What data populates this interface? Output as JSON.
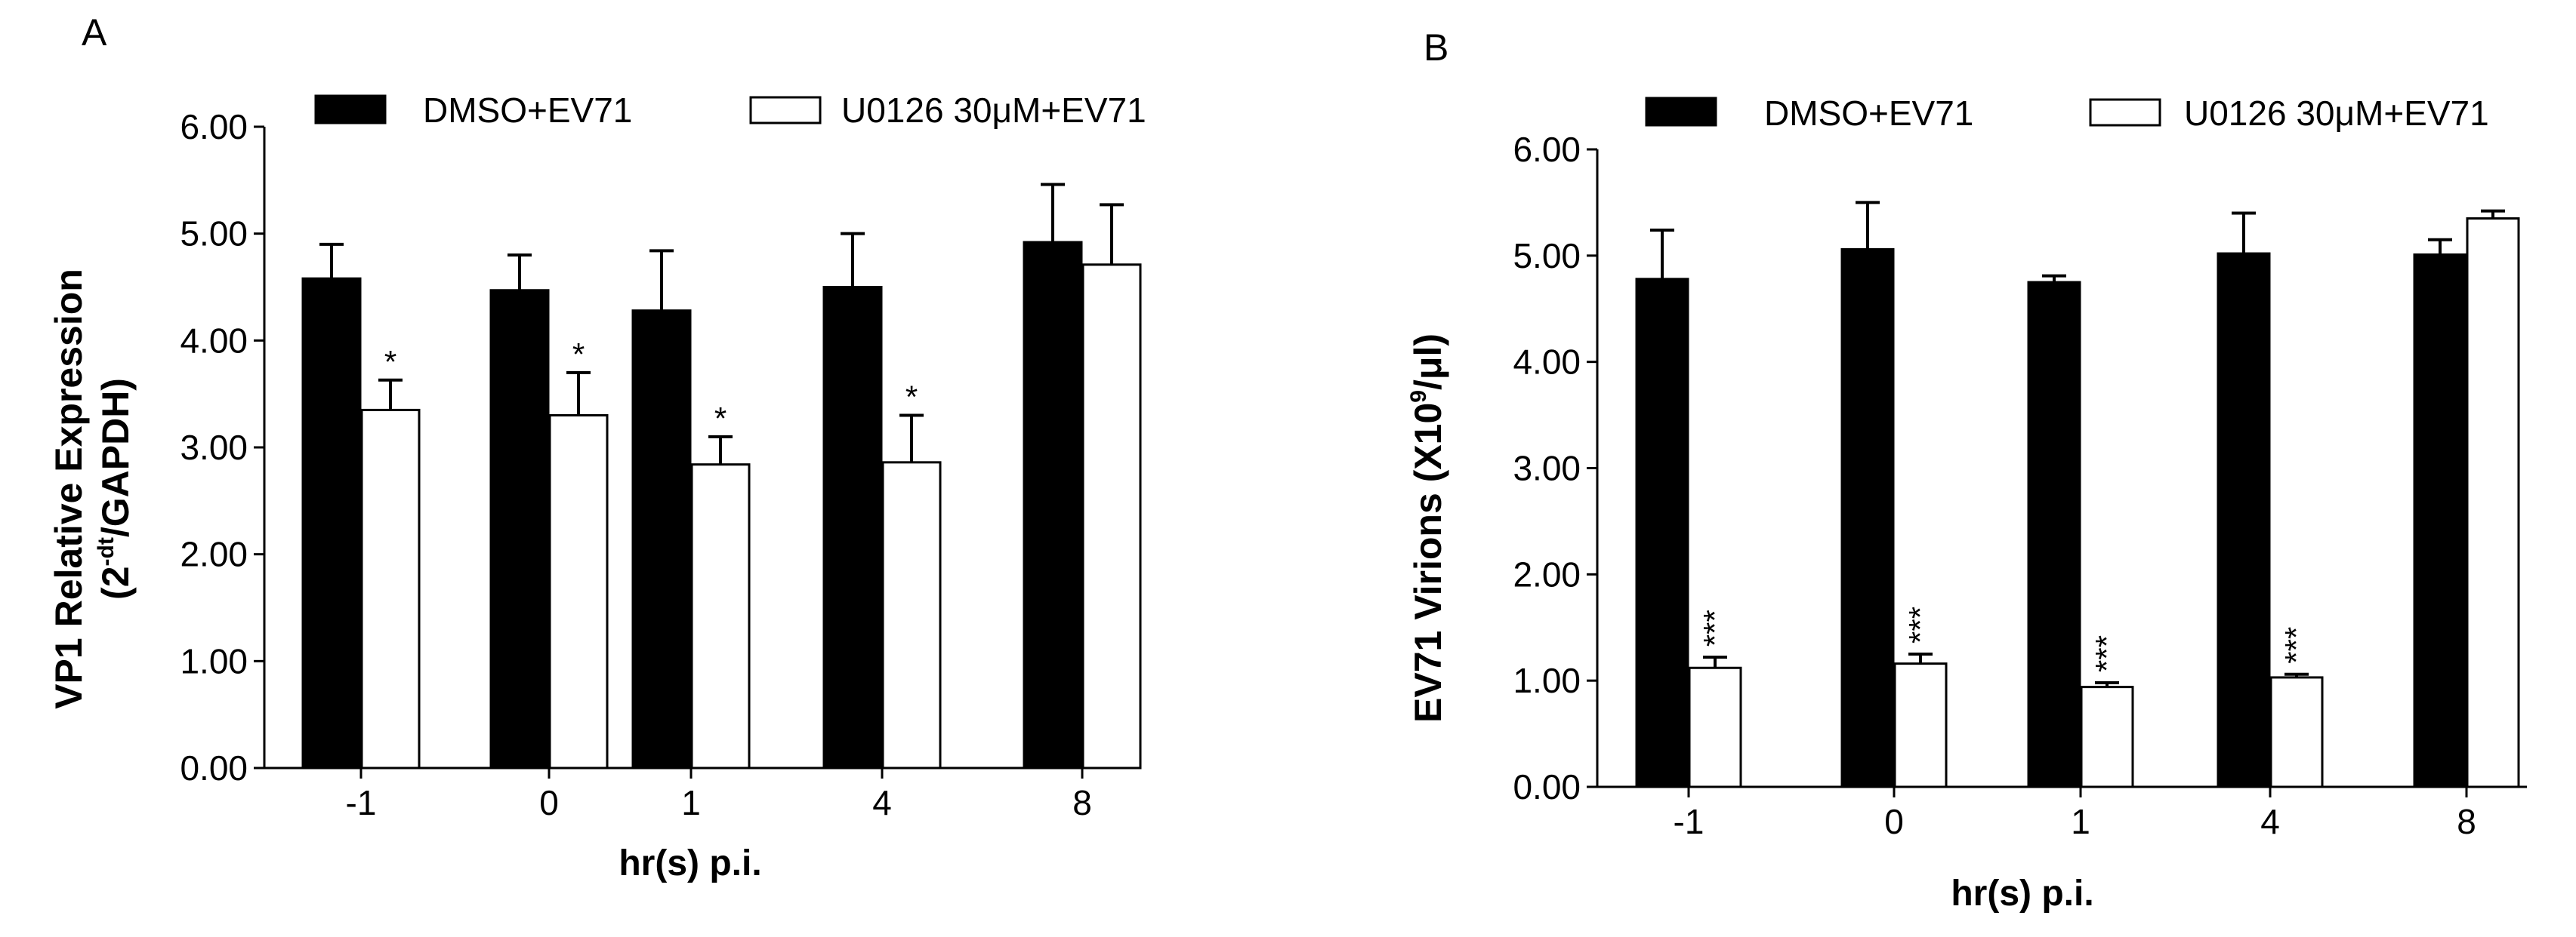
{
  "legend": {
    "series_a_label": "DMSO+EV71",
    "series_b_label": "U0126 30μM+EV71"
  },
  "colors": {
    "series_a_fill": "#000000",
    "series_b_fill": "#ffffff",
    "axis": "#000000"
  },
  "chart_data": [
    {
      "panel_label": "A",
      "type": "bar",
      "categories": [
        "-1",
        "0",
        "1",
        "4",
        "8"
      ],
      "series": [
        {
          "name": "DMSO+EV71",
          "values": [
            4.58,
            4.47,
            4.28,
            4.5,
            4.92
          ],
          "errors": [
            0.32,
            0.33,
            0.56,
            0.5,
            0.54
          ]
        },
        {
          "name": "U0126 30μM+EV71",
          "values": [
            3.35,
            3.3,
            2.84,
            2.86,
            4.71
          ],
          "errors": [
            0.28,
            0.4,
            0.26,
            0.44,
            0.56
          ]
        }
      ],
      "significance": [
        "*",
        "*",
        "*",
        "*",
        ""
      ],
      "ylim": [
        0,
        6
      ],
      "yticks": [
        "0.00",
        "1.00",
        "2.00",
        "3.00",
        "4.00",
        "5.00",
        "6.00"
      ],
      "xlabel": "hr(s) p.i.",
      "ylabel_line1": "VP1 Relative Expression",
      "ylabel_line2_prefix": "(2",
      "ylabel_line2_sup": "-dt",
      "ylabel_line2_suffix": "/GAPDH)"
    },
    {
      "panel_label": "B",
      "type": "bar",
      "categories": [
        "-1",
        "0",
        "1",
        "4",
        "8"
      ],
      "series": [
        {
          "name": "DMSO+EV71",
          "values": [
            4.78,
            5.06,
            4.75,
            5.02,
            5.01
          ],
          "errors": [
            0.46,
            0.44,
            0.06,
            0.38,
            0.14
          ]
        },
        {
          "name": "U0126 30μM+EV71",
          "values": [
            1.12,
            1.16,
            0.94,
            1.03,
            5.35
          ],
          "errors": [
            0.1,
            0.09,
            0.04,
            0.03,
            0.07
          ]
        }
      ],
      "significance": [
        "***",
        "***",
        "***",
        "***",
        ""
      ],
      "ylim": [
        0,
        6
      ],
      "yticks": [
        "0.00",
        "1.00",
        "2.00",
        "3.00",
        "4.00",
        "5.00",
        "6.00"
      ],
      "xlabel": "hr(s) p.i.",
      "ylabel_line1_prefix": "EV71 Virions (X10",
      "ylabel_line1_sup": "9",
      "ylabel_line1_suffix": "/μl)"
    }
  ]
}
